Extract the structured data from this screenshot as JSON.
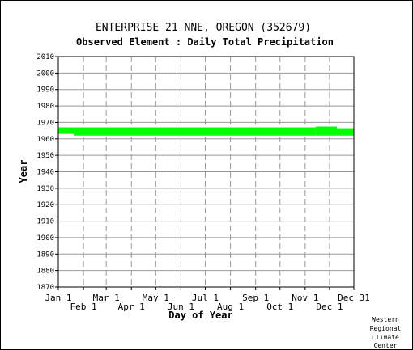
{
  "chart_data": {
    "type": "area",
    "title": "ENTERPRISE 21 NNE, OREGON   (352679)",
    "subtitle": "Observed Element : Daily Total Precipitation",
    "xlabel": "Day of Year",
    "ylabel": "Year",
    "ylim": [
      1870,
      2010
    ],
    "yticks": [
      1870,
      1880,
      1890,
      1900,
      1910,
      1920,
      1930,
      1940,
      1950,
      1960,
      1970,
      1980,
      1990,
      2000,
      2010
    ],
    "xlim": [
      1,
      365
    ],
    "xticks_top": [
      {
        "label": "Jan 1",
        "day": 1
      },
      {
        "label": "Mar 1",
        "day": 60
      },
      {
        "label": "May 1",
        "day": 121
      },
      {
        "label": "Jul 1",
        "day": 182
      },
      {
        "label": "Sep 1",
        "day": 244
      },
      {
        "label": "Nov 1",
        "day": 305
      },
      {
        "label": "Dec 31",
        "day": 365
      }
    ],
    "xticks_bottom": [
      {
        "label": "Feb 1",
        "day": 32
      },
      {
        "label": "Apr 1",
        "day": 91
      },
      {
        "label": "Jun 1",
        "day": 152
      },
      {
        "label": "Aug 1",
        "day": 213
      },
      {
        "label": "Oct 1",
        "day": 274
      },
      {
        "label": "Dec 1",
        "day": 335
      }
    ],
    "grid": true,
    "series_color": "#00ff00",
    "data_segments": [
      {
        "day_start": 1,
        "day_end": 20,
        "year_start": 1963,
        "year_end": 1967
      },
      {
        "day_start": 20,
        "day_end": 318,
        "year_start": 1962,
        "year_end": 1967
      },
      {
        "day_start": 318,
        "day_end": 344,
        "year_start": 1962,
        "year_end": 1967.5
      },
      {
        "day_start": 344,
        "day_end": 365,
        "year_start": 1962,
        "year_end": 1966.5
      }
    ]
  },
  "credit": [
    "Western",
    "Regional",
    "Climate",
    "Center"
  ]
}
